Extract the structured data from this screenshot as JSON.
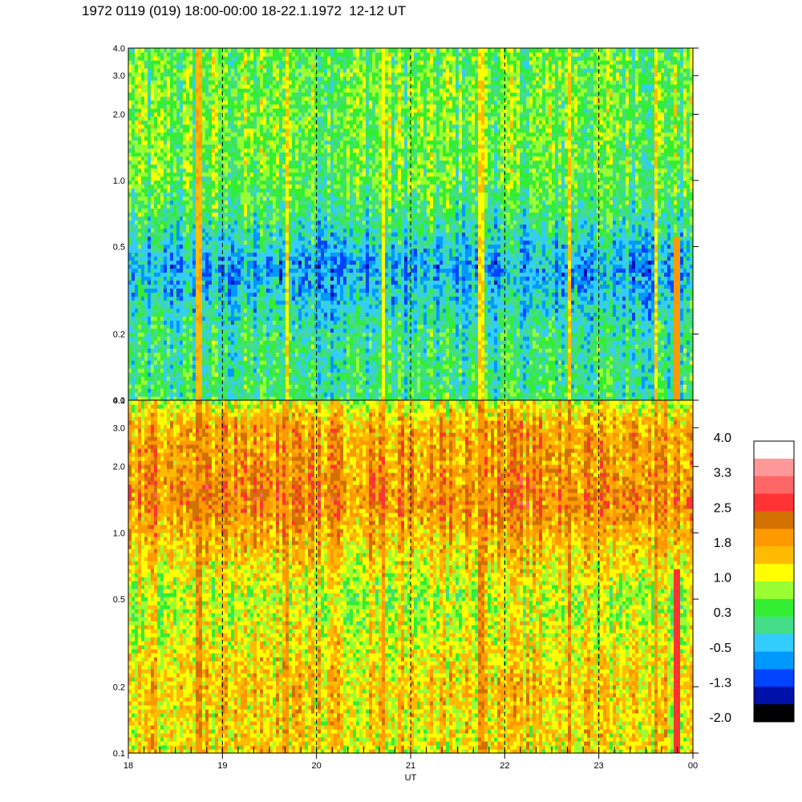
{
  "title": "1972 0119 (019) 18:00-00:00 18-22.1.1972  12-12 UT",
  "chart_data": {
    "type": "heatmap",
    "title": "1972 0119 (019) 18:00-00:00 18-22.1.1972  12-12 UT",
    "xlabel": "UT",
    "x_ticks": [
      "18",
      "19",
      "20",
      "21",
      "22",
      "23",
      "00"
    ],
    "x_range": [
      18,
      24
    ],
    "dashed_hour_lines": [
      19,
      20,
      21,
      22,
      23
    ],
    "y_scale": "log",
    "y_range": [
      0.1,
      4.0
    ],
    "y_ticks": [
      {
        "value": 0.1,
        "label": "0.1"
      },
      {
        "value": 0.2,
        "label": "0.2"
      },
      {
        "value": 0.5,
        "label": "0.5"
      },
      {
        "value": 1.0,
        "label": "1.0"
      },
      {
        "value": 2.0,
        "label": "2.0"
      },
      {
        "value": 3.0,
        "label": "3.0"
      },
      {
        "value": 4.0,
        "label": "4.0"
      }
    ],
    "panels": [
      {
        "name": "top",
        "mean_level_by_frequency": [
          {
            "freq": 0.1,
            "level": 0.2
          },
          {
            "freq": 0.2,
            "level": 0.1
          },
          {
            "freq": 0.4,
            "level": -0.6
          },
          {
            "freq": 0.7,
            "level": 0.2
          },
          {
            "freq": 1.0,
            "level": 0.5
          },
          {
            "freq": 2.0,
            "level": 0.6
          },
          {
            "freq": 4.0,
            "level": 0.5
          }
        ],
        "vertical_streaks": [
          {
            "hour": 18.75,
            "level": 1.9
          },
          {
            "hour": 19.7,
            "level": 1.6
          },
          {
            "hour": 20.7,
            "level": 1.5
          },
          {
            "hour": 21.75,
            "level": 1.6
          },
          {
            "hour": 22.7,
            "level": 1.7
          },
          {
            "hour": 23.6,
            "level": 1.6
          }
        ],
        "event": {
          "hour_start": 23.8,
          "hour_end": 23.88,
          "freq_max": 0.55,
          "level": 1.9
        }
      },
      {
        "name": "bottom",
        "mean_level_by_frequency": [
          {
            "freq": 0.1,
            "level": 1.3
          },
          {
            "freq": 0.2,
            "level": 1.5
          },
          {
            "freq": 0.5,
            "level": 0.9
          },
          {
            "freq": 1.0,
            "level": 1.7
          },
          {
            "freq": 1.4,
            "level": 2.1
          },
          {
            "freq": 2.0,
            "level": 1.9
          },
          {
            "freq": 3.0,
            "level": 1.8
          },
          {
            "freq": 4.0,
            "level": 1.0
          }
        ],
        "vertical_streaks": [
          {
            "hour": 18.75,
            "level": 2.4
          },
          {
            "hour": 19.7,
            "level": 2.2
          },
          {
            "hour": 20.7,
            "level": 2.1
          },
          {
            "hour": 21.75,
            "level": 2.3
          },
          {
            "hour": 22.7,
            "level": 2.4
          },
          {
            "hour": 23.6,
            "level": 2.2
          }
        ],
        "event": {
          "hour_start": 23.8,
          "hour_end": 23.88,
          "freq_max": 0.7,
          "level": 2.8
        }
      }
    ],
    "colorbar": {
      "labels": [
        "4.0",
        "3.3",
        "2.5",
        "1.8",
        "1.0",
        "0.3",
        "-0.5",
        "-1.3",
        "-2.0"
      ],
      "colors": [
        "#ffffff",
        "#ff9999",
        "#ff6666",
        "#ff3333",
        "#d27000",
        "#ff9900",
        "#ffbb00",
        "#ffff00",
        "#99ff33",
        "#33ee33",
        "#44dd88",
        "#33ccff",
        "#0099ff",
        "#0044ff",
        "#0011aa",
        "#000000"
      ],
      "range": [
        -2.0,
        4.0
      ]
    }
  }
}
